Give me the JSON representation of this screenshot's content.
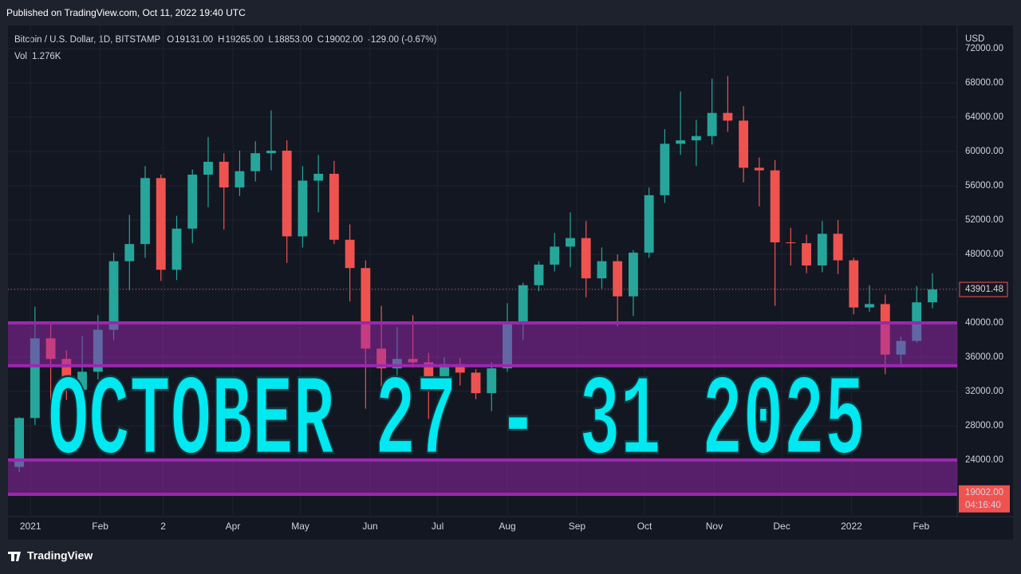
{
  "header": {
    "published": "Published on TradingView.com, Oct 11, 2022 19:40 UTC"
  },
  "legend": {
    "symbol": "Bitcoin / U.S. Dollar, 1D, BITSTAMP",
    "o_label": "O",
    "o": "19131.00",
    "h_label": "H",
    "h": "19265.00",
    "l_label": "L",
    "l": "18853.00",
    "c_label": "C",
    "c": "19002.00",
    "change": "-129.00 (-0.67%)",
    "vol_label": "Vol",
    "vol": "1.276K"
  },
  "overlay": "OCTOBER 27 - 31 2025",
  "footer": "TradingView",
  "chart_data": {
    "type": "candlestick",
    "currency": "USD",
    "up_color": "#26a69a",
    "down_color": "#ef5350",
    "grid": true,
    "xlim": [
      -10,
      412
    ],
    "xticks": [
      {
        "value": 0,
        "label": "2021"
      },
      {
        "value": 31,
        "label": "Feb"
      },
      {
        "value": 59,
        "label": "2"
      },
      {
        "value": 90,
        "label": "Apr"
      },
      {
        "value": 120,
        "label": "May"
      },
      {
        "value": 151,
        "label": "Jun"
      },
      {
        "value": 181,
        "label": "Jul"
      },
      {
        "value": 212,
        "label": "Aug"
      },
      {
        "value": 243,
        "label": "Sep"
      },
      {
        "value": 273,
        "label": "Oct"
      },
      {
        "value": 304,
        "label": "Nov"
      },
      {
        "value": 334,
        "label": "Dec"
      },
      {
        "value": 365,
        "label": "2022"
      },
      {
        "value": 396,
        "label": "Feb"
      }
    ],
    "ylim": [
      17400,
      74700
    ],
    "yticks": [
      {
        "value": 24000,
        "label": "24000.00"
      },
      {
        "value": 28000,
        "label": "28000.00"
      },
      {
        "value": 32000,
        "label": "32000.00"
      },
      {
        "value": 36000,
        "label": "36000.00"
      },
      {
        "value": 40000,
        "label": "40000.00"
      },
      {
        "value": 44000,
        "label": "44000.00"
      },
      {
        "value": 48000,
        "label": "48000.00"
      },
      {
        "value": 52000,
        "label": "52000.00"
      },
      {
        "value": 56000,
        "label": "56000.00"
      },
      {
        "value": 60000,
        "label": "60000.00"
      },
      {
        "value": 64000,
        "label": "64000.00"
      },
      {
        "value": 68000,
        "label": "68000.00"
      },
      {
        "value": 72000,
        "label": "72000.00"
      }
    ],
    "x": [
      -5,
      2,
      9,
      16,
      23,
      30,
      37,
      44,
      51,
      58,
      65,
      72,
      79,
      86,
      93,
      100,
      107,
      114,
      121,
      128,
      135,
      142,
      149,
      156,
      163,
      170,
      177,
      184,
      191,
      198,
      205,
      212,
      219,
      226,
      233,
      240,
      247,
      254,
      261,
      268,
      275,
      282,
      289,
      296,
      303,
      310,
      317,
      324,
      331,
      338,
      345,
      352,
      359,
      366,
      373,
      380,
      387,
      394,
      401
    ],
    "open": [
      23200,
      28900,
      38200,
      35800,
      32200,
      34300,
      39200,
      47200,
      49200,
      56900,
      46200,
      51000,
      57300,
      58800,
      55800,
      57700,
      59800,
      60100,
      50100,
      56600,
      57400,
      49700,
      46400,
      37000,
      34700,
      35800,
      35400,
      32300,
      35200,
      34200,
      31800,
      34700,
      39900,
      44400,
      46800,
      48900,
      49900,
      45200,
      47200,
      43100,
      48200,
      54900,
      60900,
      61300,
      61800,
      64500,
      63600,
      58100,
      57800,
      49400,
      49300,
      46700,
      50400,
      47300,
      41800,
      42200,
      36300,
      37900,
      42400
    ],
    "high": [
      29000,
      41900,
      40100,
      36800,
      38500,
      40900,
      48200,
      52600,
      58300,
      57300,
      52500,
      57900,
      61700,
      59800,
      60100,
      61200,
      64800,
      61300,
      58300,
      59600,
      58900,
      51500,
      47300,
      42000,
      39500,
      40900,
      36500,
      36000,
      35900,
      34600,
      35400,
      42300,
      44700,
      47200,
      50500,
      52900,
      51900,
      48800,
      48000,
      48500,
      55800,
      62600,
      67000,
      63700,
      68500,
      68800,
      65300,
      59300,
      59000,
      51100,
      50300,
      51900,
      52000,
      47600,
      44400,
      43300,
      38400,
      44300,
      45800
    ],
    "low": [
      22600,
      28100,
      30400,
      31000,
      29300,
      33400,
      38000,
      43800,
      47600,
      44900,
      45000,
      49300,
      53500,
      50900,
      54800,
      56500,
      57800,
      47000,
      48800,
      52900,
      49200,
      42500,
      30000,
      31300,
      33400,
      34800,
      28800,
      31500,
      32700,
      31100,
      29700,
      34300,
      38000,
      43700,
      46000,
      46500,
      43000,
      44000,
      39600,
      40800,
      47600,
      54000,
      59600,
      58300,
      60800,
      62300,
      56400,
      53600,
      42000,
      46700,
      45800,
      45900,
      45700,
      41000,
      41300,
      34000,
      35000,
      37700,
      41700
    ],
    "close": [
      28900,
      38200,
      35800,
      32200,
      34300,
      39200,
      47200,
      49200,
      56900,
      46200,
      51000,
      57300,
      58800,
      55800,
      57700,
      59800,
      60100,
      50100,
      56600,
      57400,
      49700,
      46400,
      37000,
      34700,
      35800,
      35400,
      32300,
      35200,
      34200,
      31800,
      34700,
      39900,
      44400,
      46800,
      48900,
      49900,
      45200,
      47200,
      43100,
      48200,
      54900,
      60900,
      61300,
      61800,
      64500,
      63600,
      58100,
      57800,
      49400,
      49300,
      46700,
      50400,
      47300,
      41800,
      42200,
      36300,
      37900,
      42400,
      43900
    ],
    "zone_color": "#9c27b0",
    "zones": [
      {
        "from": 35000,
        "to": 40000
      },
      {
        "from": 20000,
        "to": 24000
      }
    ],
    "last_price": 43901.48,
    "current_price": {
      "value": 19002,
      "label": "19002.00"
    },
    "countdown": "04:16:40"
  }
}
